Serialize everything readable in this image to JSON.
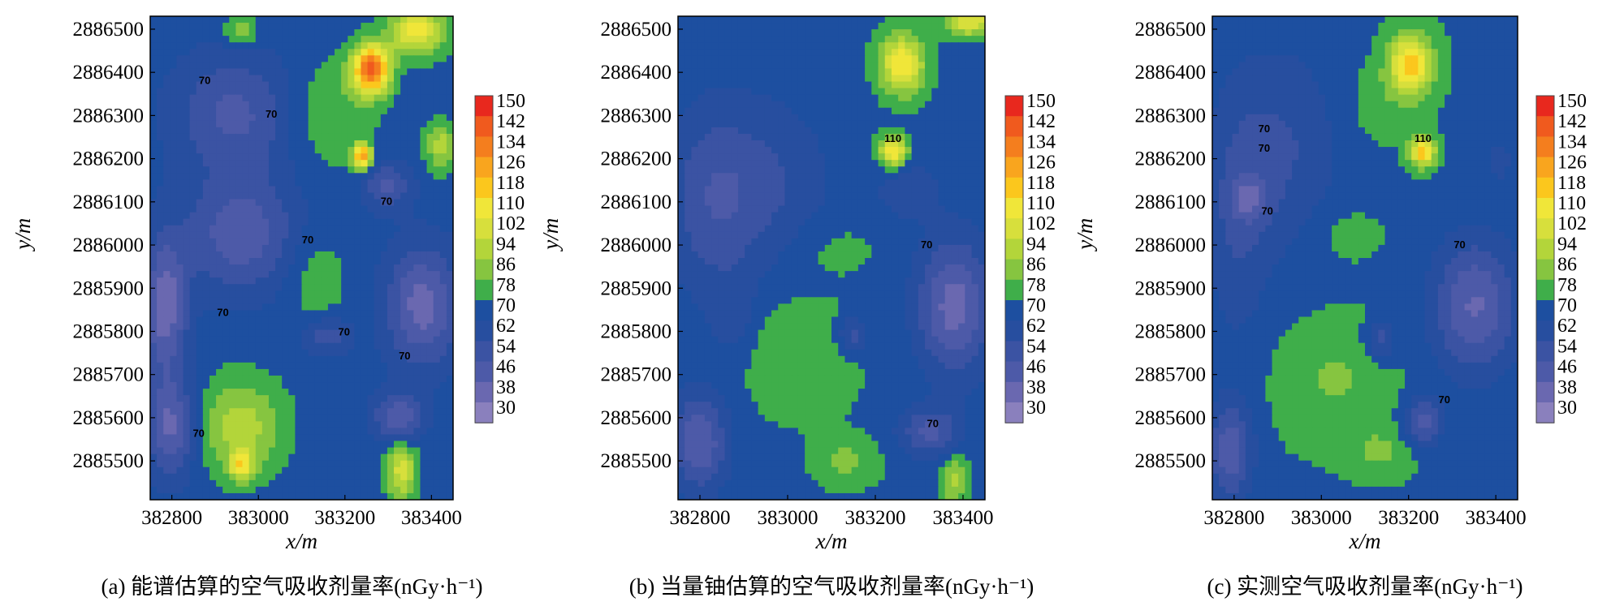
{
  "chart_data": [
    {
      "type": "heatmap",
      "caption": "(a) 能谱估算的空气吸收剂量率(nGy·h⁻¹)",
      "xlabel": "x/m",
      "ylabel": "y/m",
      "xticks": [
        "382800",
        "383000",
        "383200",
        "383400"
      ],
      "yticks": [
        "2886500",
        "2886400",
        "2886300",
        "2886200",
        "2886100",
        "2886000",
        "2885900",
        "2885800",
        "2885700",
        "2885600",
        "2885500"
      ],
      "xlim": [
        382750,
        383450
      ],
      "ylim": [
        2885410,
        2886530
      ],
      "contour_labels": [
        "70",
        "70",
        "70",
        "70",
        "70",
        "70",
        "70",
        "70"
      ]
    },
    {
      "type": "heatmap",
      "caption": "(b) 当量铀估算的空气吸收剂量率(nGy·h⁻¹)",
      "xlabel": "x/m",
      "ylabel": "y/m",
      "xticks": [
        "382800",
        "383000",
        "383200",
        "383400"
      ],
      "yticks": [
        "2886500",
        "2886400",
        "2886300",
        "2886200",
        "2886100",
        "2886000",
        "2885900",
        "2885800",
        "2885700",
        "2885600",
        "2885500"
      ],
      "xlim": [
        382750,
        383450
      ],
      "ylim": [
        2885410,
        2886530
      ],
      "contour_labels": [
        "110",
        "70",
        "70"
      ]
    },
    {
      "type": "heatmap",
      "caption": "(c) 实测空气吸收剂量率(nGy·h⁻¹)",
      "xlabel": "x/m",
      "ylabel": "y/m",
      "xticks": [
        "382800",
        "383000",
        "383200",
        "383400"
      ],
      "yticks": [
        "2886500",
        "2886400",
        "2886300",
        "2886200",
        "2886100",
        "2886000",
        "2885900",
        "2885800",
        "2885700",
        "2885600",
        "2885500"
      ],
      "xlim": [
        382750,
        383450
      ],
      "ylim": [
        2885410,
        2886530
      ],
      "contour_labels": [
        "110",
        "70",
        "70",
        "70",
        "70",
        "70"
      ]
    }
  ],
  "colorbar": {
    "levels": [
      "150",
      "142",
      "134",
      "126",
      "118",
      "110",
      "102",
      "94",
      "86",
      "78",
      "70",
      "62",
      "54",
      "46",
      "38",
      "30"
    ],
    "colors": [
      "#e8281e",
      "#f05a1e",
      "#f47e1e",
      "#f9a51e",
      "#fbc71d",
      "#f0e639",
      "#d7df3c",
      "#b3d53a",
      "#86c540",
      "#3fae4a",
      "#1d4fa0",
      "#274e9f",
      "#3b53a3",
      "#4d5aa8",
      "#6a68b0",
      "#8a80bd"
    ]
  }
}
